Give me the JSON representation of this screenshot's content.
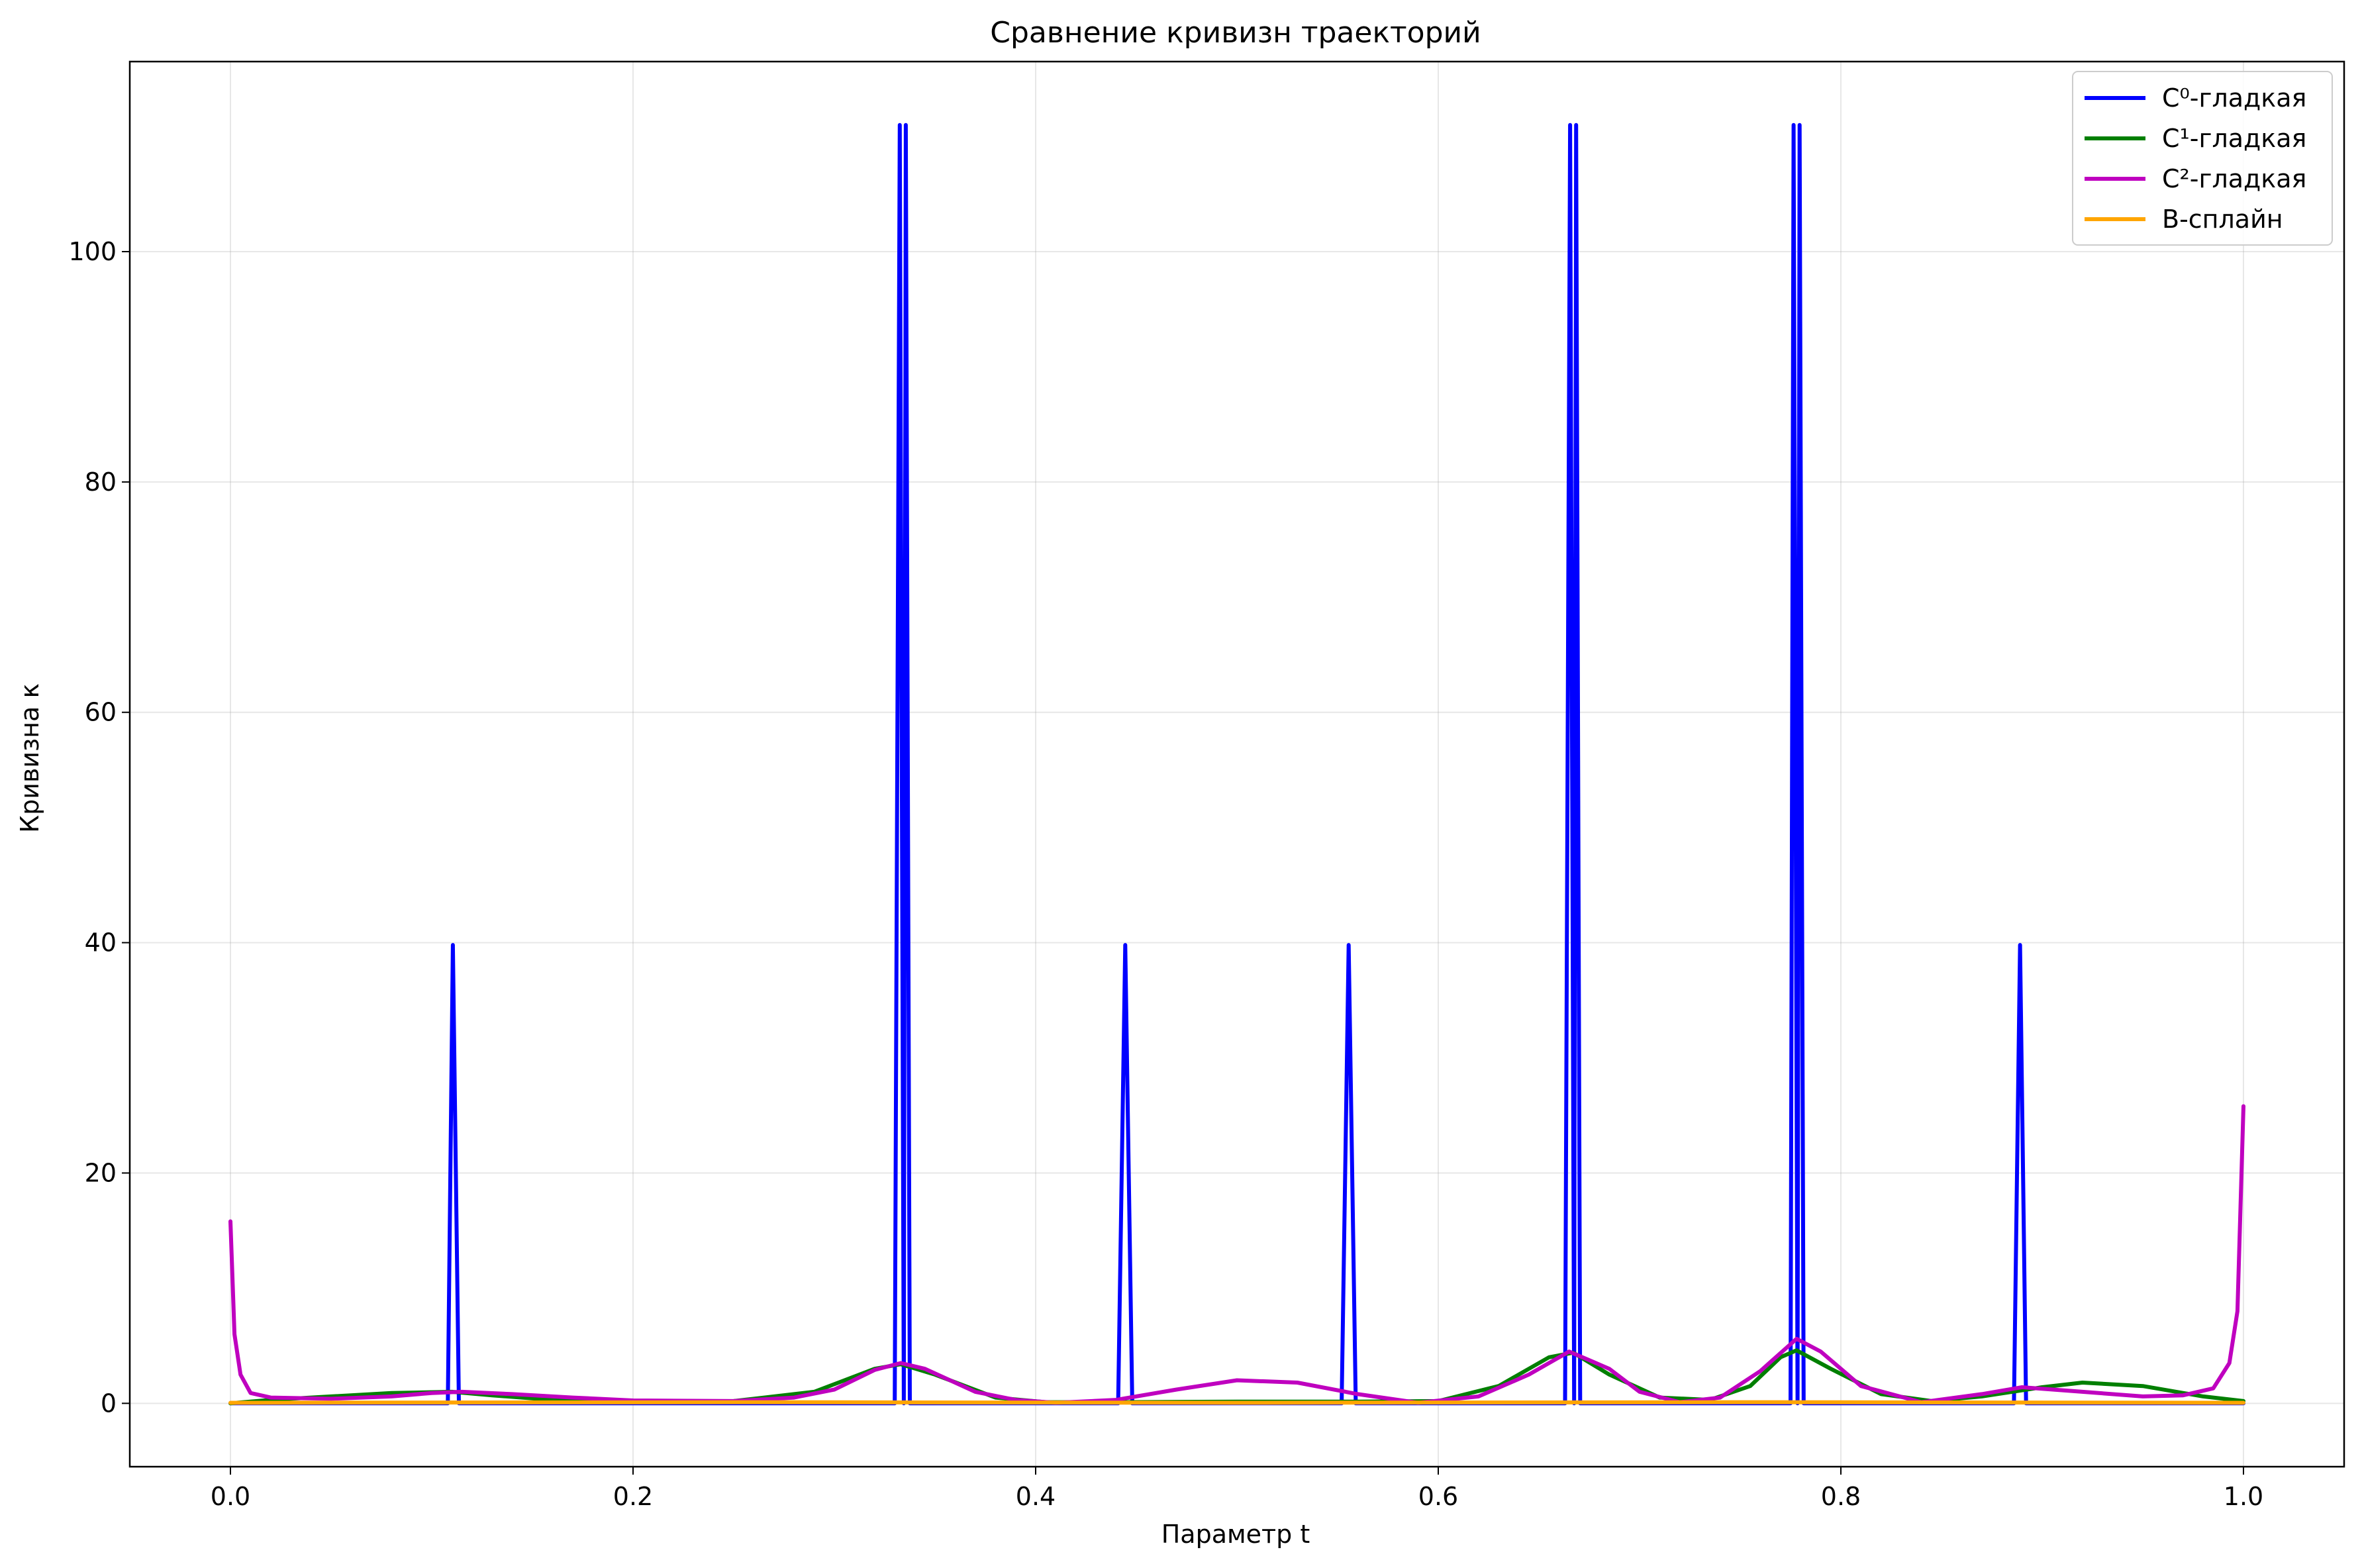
{
  "chart_data": {
    "type": "line",
    "title": "Сравнение кривизн траекторий",
    "xlabel": "Параметр t",
    "ylabel": "Кривизна κ",
    "xlim": [
      -0.05,
      1.05
    ],
    "ylim": [
      -5.5,
      116.5
    ],
    "xticks": [
      0.0,
      0.2,
      0.4,
      0.6,
      0.8,
      1.0
    ],
    "xtick_labels": [
      "0.0",
      "0.2",
      "0.4",
      "0.6",
      "0.8",
      "1.0"
    ],
    "yticks": [
      0,
      20,
      40,
      60,
      80,
      100
    ],
    "ytick_labels": [
      "0",
      "20",
      "40",
      "60",
      "80",
      "100"
    ],
    "grid": true,
    "legend_position": "top-right",
    "series": [
      {
        "name": "C⁰-гладкая",
        "color": "#0000ff",
        "points": [
          [
            0.0,
            0
          ],
          [
            0.108,
            0
          ],
          [
            0.1105,
            39.8
          ],
          [
            0.1135,
            0
          ],
          [
            0.33,
            0
          ],
          [
            0.3325,
            111
          ],
          [
            0.3345,
            0
          ],
          [
            0.3355,
            111
          ],
          [
            0.3375,
            0
          ],
          [
            0.441,
            0
          ],
          [
            0.4445,
            39.8
          ],
          [
            0.448,
            0
          ],
          [
            0.552,
            0
          ],
          [
            0.5555,
            39.8
          ],
          [
            0.559,
            0
          ],
          [
            0.663,
            0
          ],
          [
            0.6655,
            111
          ],
          [
            0.6675,
            0
          ],
          [
            0.6685,
            111
          ],
          [
            0.6705,
            0
          ],
          [
            0.775,
            0
          ],
          [
            0.7765,
            111
          ],
          [
            0.7785,
            0
          ],
          [
            0.7795,
            111
          ],
          [
            0.7815,
            0
          ],
          [
            0.886,
            0
          ],
          [
            0.889,
            39.8
          ],
          [
            0.892,
            0
          ],
          [
            1.0,
            0
          ]
        ]
      },
      {
        "name": "C¹-гладкая",
        "color": "#007f00",
        "points": [
          [
            0.0,
            0
          ],
          [
            0.02,
            0.3
          ],
          [
            0.05,
            0.6
          ],
          [
            0.08,
            0.9
          ],
          [
            0.11,
            1.0
          ],
          [
            0.13,
            0.7
          ],
          [
            0.16,
            0.3
          ],
          [
            0.2,
            0.15
          ],
          [
            0.25,
            0.2
          ],
          [
            0.29,
            1.0
          ],
          [
            0.32,
            3.0
          ],
          [
            0.333,
            3.4
          ],
          [
            0.35,
            2.5
          ],
          [
            0.38,
            0.5
          ],
          [
            0.405,
            0.1
          ],
          [
            0.44,
            0.1
          ],
          [
            0.5,
            0.15
          ],
          [
            0.56,
            0.15
          ],
          [
            0.6,
            0.2
          ],
          [
            0.63,
            1.5
          ],
          [
            0.655,
            4.0
          ],
          [
            0.667,
            4.4
          ],
          [
            0.685,
            2.5
          ],
          [
            0.71,
            0.5
          ],
          [
            0.735,
            0.3
          ],
          [
            0.755,
            1.5
          ],
          [
            0.77,
            4.0
          ],
          [
            0.778,
            4.6
          ],
          [
            0.795,
            3.0
          ],
          [
            0.82,
            0.8
          ],
          [
            0.845,
            0.2
          ],
          [
            0.87,
            0.6
          ],
          [
            0.9,
            1.4
          ],
          [
            0.92,
            1.8
          ],
          [
            0.95,
            1.5
          ],
          [
            0.98,
            0.6
          ],
          [
            1.0,
            0.2
          ]
        ]
      },
      {
        "name": "C²-гладкая",
        "color": "#bf00bf",
        "points": [
          [
            0.0,
            15.8
          ],
          [
            0.002,
            6
          ],
          [
            0.005,
            2.5
          ],
          [
            0.01,
            0.9
          ],
          [
            0.02,
            0.5
          ],
          [
            0.05,
            0.4
          ],
          [
            0.08,
            0.6
          ],
          [
            0.1,
            0.9
          ],
          [
            0.115,
            1.0
          ],
          [
            0.14,
            0.8
          ],
          [
            0.17,
            0.5
          ],
          [
            0.2,
            0.25
          ],
          [
            0.25,
            0.2
          ],
          [
            0.28,
            0.5
          ],
          [
            0.3,
            1.2
          ],
          [
            0.32,
            2.9
          ],
          [
            0.333,
            3.5
          ],
          [
            0.345,
            3.0
          ],
          [
            0.37,
            1.0
          ],
          [
            0.39,
            0.3
          ],
          [
            0.41,
            0.05
          ],
          [
            0.44,
            0.3
          ],
          [
            0.47,
            1.2
          ],
          [
            0.5,
            2.0
          ],
          [
            0.53,
            1.8
          ],
          [
            0.56,
            0.8
          ],
          [
            0.59,
            0.05
          ],
          [
            0.62,
            0.6
          ],
          [
            0.645,
            2.5
          ],
          [
            0.665,
            4.5
          ],
          [
            0.685,
            3.0
          ],
          [
            0.7,
            1.0
          ],
          [
            0.72,
            0.1
          ],
          [
            0.74,
            0.5
          ],
          [
            0.76,
            2.8
          ],
          [
            0.778,
            5.6
          ],
          [
            0.79,
            4.5
          ],
          [
            0.81,
            1.5
          ],
          [
            0.84,
            0.1
          ],
          [
            0.87,
            0.8
          ],
          [
            0.89,
            1.4
          ],
          [
            0.92,
            1.0
          ],
          [
            0.95,
            0.6
          ],
          [
            0.97,
            0.7
          ],
          [
            0.985,
            1.3
          ],
          [
            0.993,
            3.5
          ],
          [
            0.997,
            8.0
          ],
          [
            1.0,
            25.8
          ]
        ]
      },
      {
        "name": "B-сплайн",
        "color": "#ffa500",
        "points": [
          [
            0.0,
            0.05
          ],
          [
            0.25,
            0.1
          ],
          [
            0.5,
            0.05
          ],
          [
            0.75,
            0.1
          ],
          [
            1.0,
            0.05
          ]
        ]
      }
    ]
  }
}
